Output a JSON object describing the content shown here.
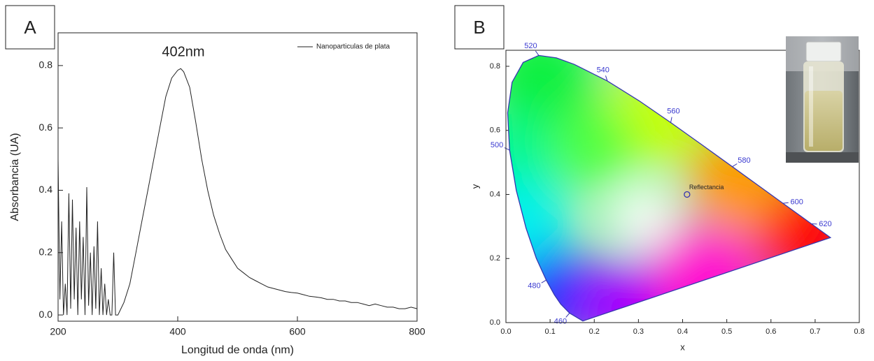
{
  "chart_data": [
    {
      "type": "line",
      "panel_label": "A",
      "annotation": "402nm",
      "xlabel": "Longitud de onda (nm)",
      "ylabel": "Absorbancia (UA)",
      "xlim": [
        200,
        800
      ],
      "ylim": [
        -0.02,
        0.905
      ],
      "xticks": [
        200,
        400,
        600,
        800
      ],
      "yticks": [
        {
          "value": 0,
          "label": "0.0"
        },
        0.2,
        0.4,
        0.6,
        0.8
      ],
      "x": [
        200,
        203,
        206,
        209,
        212,
        215,
        218,
        221,
        224,
        227,
        230,
        233,
        236,
        239,
        242,
        245,
        248,
        251,
        254,
        257,
        260,
        263,
        266,
        269,
        272,
        275,
        278,
        281,
        284,
        287,
        290,
        293,
        296,
        300,
        305,
        310,
        320,
        330,
        340,
        350,
        360,
        370,
        380,
        390,
        400,
        405,
        410,
        420,
        430,
        440,
        450,
        460,
        470,
        480,
        490,
        500,
        510,
        520,
        530,
        540,
        550,
        560,
        570,
        580,
        590,
        600,
        610,
        620,
        630,
        640,
        650,
        660,
        670,
        680,
        690,
        700,
        710,
        720,
        730,
        740,
        750,
        760,
        770,
        780,
        790,
        800
      ],
      "series": [
        {
          "name": "Nanoparticulas de plata",
          "color": "#222222",
          "values": [
            0.5,
            0.05,
            0.3,
            0.0,
            0.1,
            0.0,
            0.39,
            0.02,
            0.37,
            0.05,
            0.28,
            0.0,
            0.3,
            0.05,
            0.25,
            0.0,
            0.41,
            0.03,
            0.2,
            0.0,
            0.22,
            0.02,
            0.3,
            0.0,
            0.15,
            0.0,
            0.1,
            0.0,
            0.05,
            0.0,
            0.0,
            0.2,
            0.0,
            0.0,
            0.02,
            0.04,
            0.1,
            0.2,
            0.3,
            0.4,
            0.5,
            0.6,
            0.7,
            0.76,
            0.785,
            0.79,
            0.78,
            0.73,
            0.62,
            0.5,
            0.4,
            0.32,
            0.26,
            0.21,
            0.18,
            0.15,
            0.135,
            0.12,
            0.11,
            0.1,
            0.09,
            0.085,
            0.08,
            0.075,
            0.072,
            0.07,
            0.065,
            0.06,
            0.058,
            0.055,
            0.05,
            0.05,
            0.045,
            0.045,
            0.04,
            0.04,
            0.035,
            0.03,
            0.035,
            0.03,
            0.025,
            0.025,
            0.02,
            0.02,
            0.025,
            0.02
          ]
        }
      ]
    },
    {
      "type": "chromaticity",
      "panel_label": "B",
      "xlabel": "x",
      "ylabel": "y",
      "xlim": [
        0,
        0.8
      ],
      "ylim": [
        0,
        0.85
      ],
      "xticks": [
        {
          "value": 0,
          "label": "0.0"
        },
        0.1,
        0.2,
        0.3,
        0.4,
        0.5,
        0.6,
        0.7,
        0.8
      ],
      "yticks": [
        {
          "value": 0,
          "label": "0.0"
        },
        0.2,
        0.4,
        0.6,
        0.8
      ],
      "locus": {
        "x": [
          0.1741,
          0.144,
          0.1241,
          0.1096,
          0.0913,
          0.0687,
          0.0454,
          0.0235,
          0.0082,
          0.0039,
          0.0139,
          0.0389,
          0.0743,
          0.1142,
          0.1547,
          0.2296,
          0.3016,
          0.3731,
          0.4441,
          0.5125,
          0.5752,
          0.627,
          0.6915,
          0.719,
          0.7347,
          0.1741
        ],
        "y": [
          0.005,
          0.0297,
          0.0578,
          0.0868,
          0.1327,
          0.2007,
          0.295,
          0.4127,
          0.5384,
          0.6548,
          0.7502,
          0.812,
          0.8338,
          0.8262,
          0.8059,
          0.7543,
          0.6923,
          0.6245,
          0.5547,
          0.4866,
          0.4242,
          0.3725,
          0.3083,
          0.2809,
          0.2653,
          0.005
        ]
      },
      "wavelength_marks": [
        {
          "nm": 460,
          "x": 0.144,
          "y": 0.0297
        },
        {
          "nm": 480,
          "x": 0.0913,
          "y": 0.1327
        },
        {
          "nm": 500,
          "x": 0.0082,
          "y": 0.5384
        },
        {
          "nm": 520,
          "x": 0.0743,
          "y": 0.8338
        },
        {
          "nm": 540,
          "x": 0.2296,
          "y": 0.7543
        },
        {
          "nm": 560,
          "x": 0.3731,
          "y": 0.6245
        },
        {
          "nm": 580,
          "x": 0.5125,
          "y": 0.4866
        },
        {
          "nm": 600,
          "x": 0.627,
          "y": 0.3725
        },
        {
          "nm": 620,
          "x": 0.6915,
          "y": 0.3083
        }
      ],
      "points": [
        {
          "label": "Reflectancia",
          "x": 0.41,
          "y": 0.4
        }
      ]
    }
  ]
}
